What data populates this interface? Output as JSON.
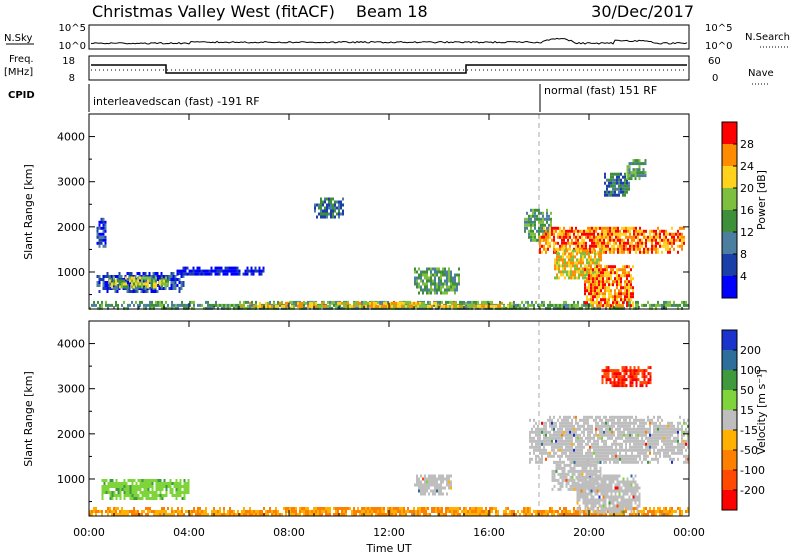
{
  "header": {
    "station": "Christmas Valley West (fitACF)",
    "beam": "Beam 18",
    "date": "30/Dec/2017"
  },
  "status_panel": {
    "nsky_label": "N.Sky",
    "nsky_ticks": [
      "10^5",
      "10^0"
    ],
    "nsearch_label": "N.Search",
    "nsearch_ticks": [
      "10^5",
      "10^0"
    ],
    "freq_label_line1": "Freq.",
    "freq_label_line2": "[MHz]",
    "freq_ticks": [
      "18",
      "8"
    ],
    "nave_label": "Nave",
    "nave_ticks": [
      "60",
      "0"
    ],
    "cpid_label": "CPID",
    "cpid_segments": [
      {
        "label": "interleavedscan (fast) -191 RF",
        "start_h": 0,
        "end_h": 18
      },
      {
        "label": "normal (fast) 151 RF",
        "start_h": 18,
        "end_h": 24
      }
    ]
  },
  "colors": {
    "ground_scatter": "#bebebe",
    "dashed_marker": "#aaaaaa"
  },
  "chart_data": [
    {
      "type": "heatmap",
      "name": "power",
      "ylabel": "Slant Range [km]",
      "ylim": [
        180,
        4500
      ],
      "y_ticks": [
        1000,
        2000,
        3000,
        4000
      ],
      "xlim_hours": [
        0,
        24
      ],
      "colorbar_label": "Power [dB]",
      "colorbar_ticks": [
        "4",
        "8",
        "12",
        "16",
        "20",
        "24",
        "28"
      ],
      "colorbar_colors": [
        "#0000ff",
        "#1a3fa8",
        "#4c7f9f",
        "#3e8f3a",
        "#7fbf3f",
        "#ffd21e",
        "#ff8c00",
        "#ff0000"
      ],
      "regions": [
        {
          "t": [
            0.3,
            3.8
          ],
          "r": [
            600,
            1000
          ],
          "level": 1
        },
        {
          "t": [
            0.8,
            3.2
          ],
          "r": [
            680,
            900
          ],
          "level": 4
        },
        {
          "t": [
            3.5,
            7.0
          ],
          "r": [
            950,
            1120
          ],
          "level": 0
        },
        {
          "t": [
            0.3,
            0.7
          ],
          "r": [
            1550,
            2200
          ],
          "level": 1
        },
        {
          "t": [
            0,
            24
          ],
          "r": [
            200,
            360
          ],
          "level": 3
        },
        {
          "t": [
            6,
            17
          ],
          "r": [
            240,
            340
          ],
          "level": 5
        },
        {
          "t": [
            9.0,
            10.2
          ],
          "r": [
            2250,
            2650
          ],
          "level": 2
        },
        {
          "t": [
            13.0,
            14.8
          ],
          "r": [
            550,
            1100
          ],
          "level": 3
        },
        {
          "t": [
            17.4,
            18.5
          ],
          "r": [
            1700,
            2400
          ],
          "level": 3
        },
        {
          "t": [
            18.0,
            23.8
          ],
          "r": [
            1450,
            2000
          ],
          "level": 6
        },
        {
          "t": [
            18.6,
            20.5
          ],
          "r": [
            900,
            1500
          ],
          "level": 5
        },
        {
          "t": [
            19.8,
            21.8
          ],
          "r": [
            250,
            1150
          ],
          "level": 6
        },
        {
          "t": [
            20.6,
            21.6
          ],
          "r": [
            2700,
            3200
          ],
          "level": 2
        },
        {
          "t": [
            21.5,
            22.3
          ],
          "r": [
            3100,
            3500
          ],
          "level": 3
        }
      ]
    },
    {
      "type": "heatmap",
      "name": "velocity",
      "ylabel": "Slant Range [km]",
      "xlabel": "Time UT",
      "ylim": [
        180,
        4500
      ],
      "y_ticks": [
        1000,
        2000,
        3000,
        4000
      ],
      "xlim_hours": [
        0,
        24
      ],
      "x_ticks": [
        "00:00",
        "04:00",
        "08:00",
        "12:00",
        "16:00",
        "20:00",
        "00:00"
      ],
      "colorbar_label": "Velocity [m s⁻¹]",
      "colorbar_ticks": [
        "200",
        "100",
        "50",
        "15",
        "-15",
        "-50",
        "-100",
        "-200"
      ],
      "colorbar_colors": [
        "#1a33cc",
        "#2e6e9a",
        "#3f9a3f",
        "#7ed43a",
        "#bebebe",
        "#ffb000",
        "#ff8000",
        "#ff4a00",
        "#ff0000"
      ],
      "regions": [
        {
          "t": [
            0.5,
            4.0
          ],
          "r": [
            600,
            1000
          ],
          "kind": "positive_low"
        },
        {
          "t": [
            0,
            24
          ],
          "r": [
            200,
            380
          ],
          "kind": "negative_low"
        },
        {
          "t": [
            13.0,
            14.5
          ],
          "r": [
            650,
            1100
          ],
          "kind": "ground"
        },
        {
          "t": [
            17.6,
            24
          ],
          "r": [
            1400,
            2400
          ],
          "kind": "ground"
        },
        {
          "t": [
            18.5,
            20.5
          ],
          "r": [
            800,
            1400
          ],
          "kind": "ground"
        },
        {
          "t": [
            19.5,
            22.0
          ],
          "r": [
            300,
            1100
          ],
          "kind": "ground"
        },
        {
          "t": [
            20.5,
            22.5
          ],
          "r": [
            3100,
            3500
          ],
          "kind": "negative_high"
        }
      ]
    }
  ]
}
